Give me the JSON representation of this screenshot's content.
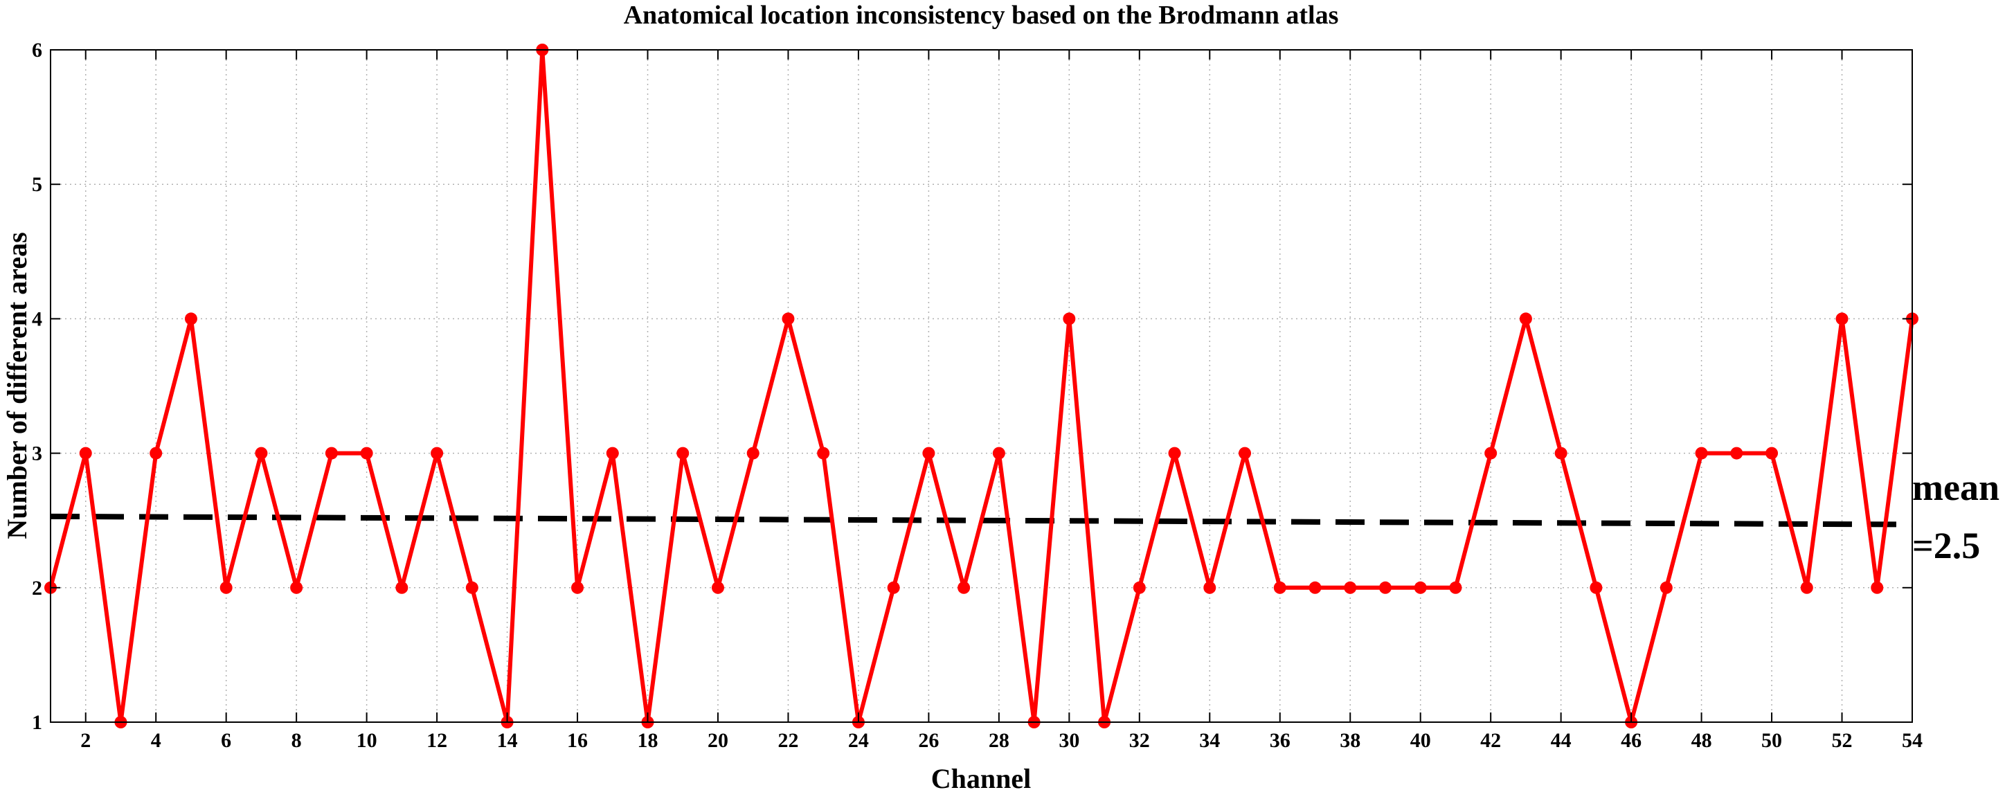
{
  "chart_data": {
    "type": "line",
    "title": "Anatomical location inconsistency based on the Brodmann atlas",
    "xlabel": "Channel",
    "ylabel": "Number of different areas",
    "xlim": [
      1,
      54
    ],
    "ylim": [
      1,
      6
    ],
    "xticks": [
      2,
      4,
      6,
      8,
      10,
      12,
      14,
      16,
      18,
      20,
      22,
      24,
      26,
      28,
      30,
      32,
      34,
      36,
      38,
      40,
      42,
      44,
      46,
      48,
      50,
      52,
      54
    ],
    "yticks": [
      1,
      2,
      3,
      4,
      5,
      6
    ],
    "grid": true,
    "series": [
      {
        "color": "#ff0000",
        "marker": "circle",
        "x": [
          1,
          2,
          3,
          4,
          5,
          6,
          7,
          8,
          9,
          10,
          11,
          12,
          13,
          14,
          15,
          16,
          17,
          18,
          19,
          20,
          21,
          22,
          23,
          24,
          25,
          26,
          27,
          28,
          29,
          30,
          31,
          32,
          33,
          34,
          35,
          36,
          37,
          38,
          39,
          40,
          41,
          42,
          43,
          44,
          45,
          46,
          47,
          48,
          49,
          50,
          51,
          52,
          53,
          54
        ],
        "values": [
          2,
          3,
          1,
          3,
          4,
          2,
          3,
          2,
          3,
          3,
          2,
          3,
          2,
          1,
          6,
          2,
          3,
          1,
          3,
          2,
          3,
          4,
          3,
          1,
          2,
          3,
          2,
          3,
          1,
          4,
          1,
          2,
          3,
          2,
          3,
          2,
          2,
          2,
          2,
          2,
          2,
          3,
          4,
          3,
          2,
          1,
          2,
          3,
          3,
          3,
          2,
          4,
          2,
          4
        ]
      }
    ],
    "reference_line": {
      "style": "dashed",
      "color": "#000000",
      "y_start": 2.53,
      "y_end": 2.47,
      "label_line1": "mean",
      "label_line2": "=2.5"
    }
  }
}
